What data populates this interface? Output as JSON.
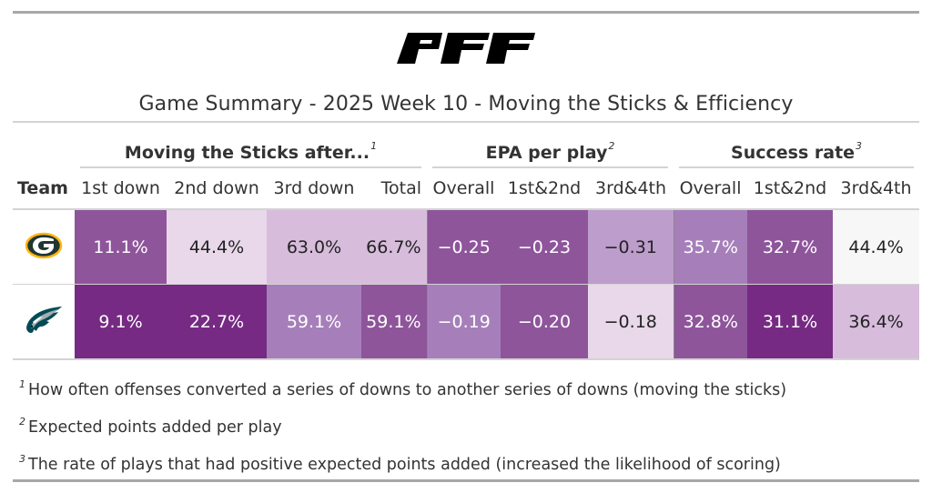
{
  "header": {
    "logo_text": "PFF",
    "title": "Game Summary - 2025 Week 10 - Moving the Sticks & Efficiency"
  },
  "table": {
    "spanners": [
      {
        "label": "Moving the Sticks after...",
        "footnote": "1"
      },
      {
        "label": "EPA per play",
        "footnote": "2"
      },
      {
        "label": "Success rate",
        "footnote": "3"
      }
    ],
    "columns": [
      "Team",
      "1st down",
      "2nd down",
      "3rd down",
      "Total",
      "Overall",
      "1st&2nd",
      "3rd&4th",
      "Overall",
      "1st&2nd",
      "3rd&4th"
    ],
    "rows": [
      {
        "team": "Green Bay Packers",
        "logo_icon": "packers-g-logo",
        "cells": [
          {
            "text": "11.1%",
            "bg": "#8e559b",
            "fg": "#ffffff"
          },
          {
            "text": "44.4%",
            "bg": "#e8d8ea",
            "fg": "#222222"
          },
          {
            "text": "63.0%",
            "bg": "#d7bcdc",
            "fg": "#222222"
          },
          {
            "text": "66.7%",
            "bg": "#d7bcdc",
            "fg": "#222222"
          },
          {
            "text": "−0.25",
            "bg": "#8e559b",
            "fg": "#ffffff"
          },
          {
            "text": "−0.23",
            "bg": "#8e559b",
            "fg": "#ffffff"
          },
          {
            "text": "−0.31",
            "bg": "#bd9dcc",
            "fg": "#222222"
          },
          {
            "text": "35.7%",
            "bg": "#a67fba",
            "fg": "#ffffff"
          },
          {
            "text": "32.7%",
            "bg": "#8e559b",
            "fg": "#ffffff"
          },
          {
            "text": "44.4%",
            "bg": "#f7f7f7",
            "fg": "#222222"
          }
        ]
      },
      {
        "team": "Philadelphia Eagles",
        "logo_icon": "eagles-head-logo",
        "cells": [
          {
            "text": "9.1%",
            "bg": "#762a83",
            "fg": "#ffffff"
          },
          {
            "text": "22.7%",
            "bg": "#762a83",
            "fg": "#ffffff"
          },
          {
            "text": "59.1%",
            "bg": "#a67fba",
            "fg": "#ffffff"
          },
          {
            "text": "59.1%",
            "bg": "#8e559b",
            "fg": "#ffffff"
          },
          {
            "text": "−0.19",
            "bg": "#a67fba",
            "fg": "#ffffff"
          },
          {
            "text": "−0.20",
            "bg": "#8e559b",
            "fg": "#ffffff"
          },
          {
            "text": "−0.18",
            "bg": "#e8d8ea",
            "fg": "#222222"
          },
          {
            "text": "32.8%",
            "bg": "#8e559b",
            "fg": "#ffffff"
          },
          {
            "text": "31.1%",
            "bg": "#762a83",
            "fg": "#ffffff"
          },
          {
            "text": "36.4%",
            "bg": "#d7bcdc",
            "fg": "#222222"
          }
        ]
      }
    ]
  },
  "footnotes": [
    {
      "mark": "1",
      "text": "How often offenses converted a series of downs to another series of downs (moving the sticks)"
    },
    {
      "mark": "2",
      "text": "Expected points added per play"
    },
    {
      "mark": "3",
      "text": "The rate of plays that had positive expected points added (increased the likelihood of scoring)"
    }
  ],
  "chart_data": {
    "type": "table",
    "title": "Game Summary - 2025 Week 10 - Moving the Sticks & Efficiency",
    "column_groups": [
      {
        "name": "Moving the Sticks after...",
        "columns": [
          "1st down",
          "2nd down",
          "3rd down",
          "Total"
        ]
      },
      {
        "name": "EPA per play",
        "columns": [
          "Overall",
          "1st&2nd",
          "3rd&4th"
        ]
      },
      {
        "name": "Success rate",
        "columns": [
          "Overall",
          "1st&2nd",
          "3rd&4th"
        ]
      }
    ],
    "columns": [
      "Team",
      "MTS 1st down",
      "MTS 2nd down",
      "MTS 3rd down",
      "MTS Total",
      "EPA Overall",
      "EPA 1st&2nd",
      "EPA 3rd&4th",
      "SR Overall",
      "SR 1st&2nd",
      "SR 3rd&4th"
    ],
    "rows": [
      [
        "Green Bay Packers",
        11.1,
        44.4,
        63.0,
        66.7,
        -0.25,
        -0.23,
        -0.31,
        35.7,
        32.7,
        44.4
      ],
      [
        "Philadelphia Eagles",
        9.1,
        22.7,
        59.1,
        59.1,
        -0.19,
        -0.2,
        -0.18,
        32.8,
        31.1,
        36.4
      ]
    ],
    "units": {
      "MTS": "percent",
      "EPA": "points per play",
      "SR": "percent"
    },
    "color_scale": "purple (darker = lower/worse)"
  }
}
